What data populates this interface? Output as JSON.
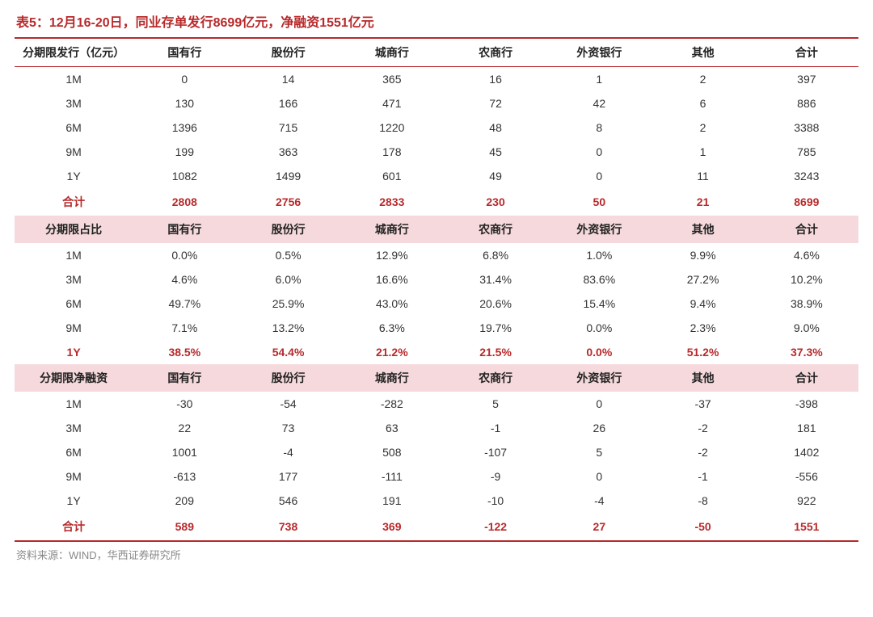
{
  "title": "表5：12月16-20日，同业存单发行8699亿元，净融资1551亿元",
  "source": "资料来源：WIND，华西证券研究所",
  "columns_main": [
    "分期限发行（亿元）",
    "国有行",
    "股份行",
    "城商行",
    "农商行",
    "外资银行",
    "其他",
    "合计"
  ],
  "columns_pct": [
    "分期限占比",
    "国有行",
    "股份行",
    "城商行",
    "农商行",
    "外资银行",
    "其他",
    "合计"
  ],
  "columns_net": [
    "分期限净融资",
    "国有行",
    "股份行",
    "城商行",
    "农商行",
    "外资银行",
    "其他",
    "合计"
  ],
  "section1": {
    "rows": [
      [
        "1M",
        "0",
        "14",
        "365",
        "16",
        "1",
        "2",
        "397"
      ],
      [
        "3M",
        "130",
        "166",
        "471",
        "72",
        "42",
        "6",
        "886"
      ],
      [
        "6M",
        "1396",
        "715",
        "1220",
        "48",
        "8",
        "2",
        "3388"
      ],
      [
        "9M",
        "199",
        "363",
        "178",
        "45",
        "0",
        "1",
        "785"
      ],
      [
        "1Y",
        "1082",
        "1499",
        "601",
        "49",
        "0",
        "11",
        "3243"
      ]
    ],
    "total": [
      "合计",
      "2808",
      "2756",
      "2833",
      "230",
      "50",
      "21",
      "8699"
    ]
  },
  "section2": {
    "rows": [
      [
        "1M",
        "0.0%",
        "0.5%",
        "12.9%",
        "6.8%",
        "1.0%",
        "9.9%",
        "4.6%"
      ],
      [
        "3M",
        "4.6%",
        "6.0%",
        "16.6%",
        "31.4%",
        "83.6%",
        "27.2%",
        "10.2%"
      ],
      [
        "6M",
        "49.7%",
        "25.9%",
        "43.0%",
        "20.6%",
        "15.4%",
        "9.4%",
        "38.9%"
      ],
      [
        "9M",
        "7.1%",
        "13.2%",
        "6.3%",
        "19.7%",
        "0.0%",
        "2.3%",
        "9.0%"
      ]
    ],
    "highlight": [
      "1Y",
      "38.5%",
      "54.4%",
      "21.2%",
      "21.5%",
      "0.0%",
      "51.2%",
      "37.3%"
    ]
  },
  "section3": {
    "rows": [
      [
        "1M",
        "-30",
        "-54",
        "-282",
        "5",
        "0",
        "-37",
        "-398"
      ],
      [
        "3M",
        "22",
        "73",
        "63",
        "-1",
        "26",
        "-2",
        "181"
      ],
      [
        "6M",
        "1001",
        "-4",
        "508",
        "-107",
        "5",
        "-2",
        "1402"
      ],
      [
        "9M",
        "-613",
        "177",
        "-111",
        "-9",
        "0",
        "-1",
        "-556"
      ],
      [
        "1Y",
        "209",
        "546",
        "191",
        "-10",
        "-4",
        "-8",
        "922"
      ]
    ],
    "total": [
      "合计",
      "589",
      "738",
      "369",
      "-122",
      "27",
      "-50",
      "1551"
    ]
  },
  "style": {
    "title_color": "#b8292b",
    "header_bg": "#f5d9dc",
    "border_color": "#b8292b",
    "text_color": "#333333",
    "red_text": "#b8292b",
    "source_color": "#888888",
    "title_fontsize": 16,
    "cell_fontsize": 14,
    "source_fontsize": 13
  }
}
